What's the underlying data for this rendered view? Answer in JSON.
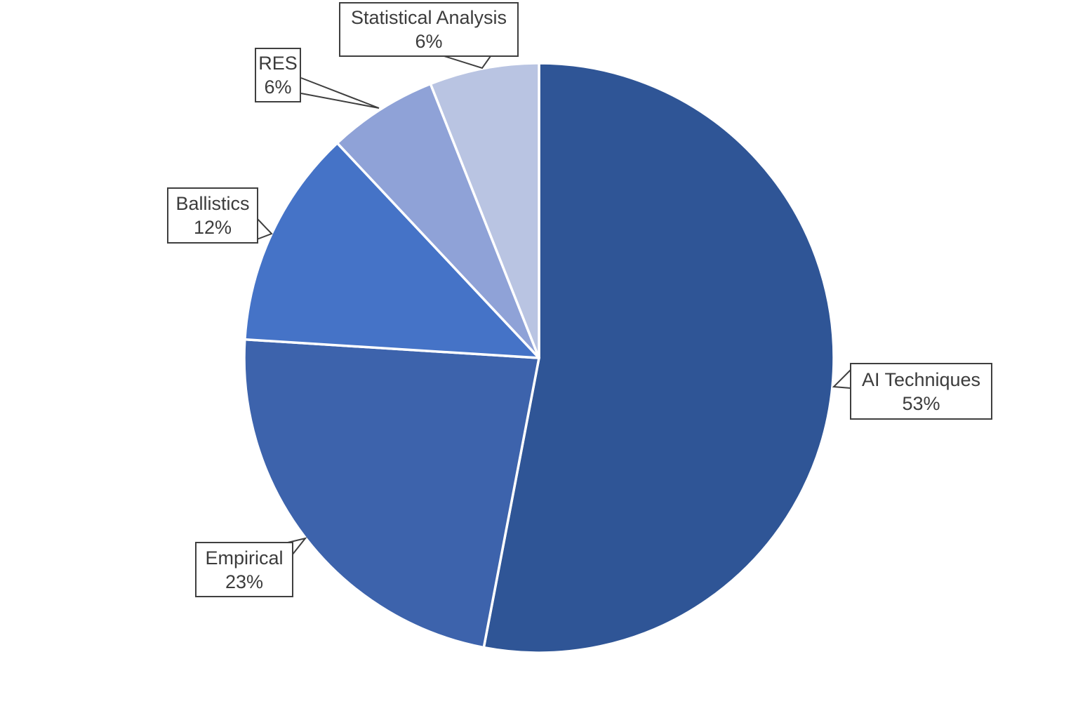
{
  "chart_data": {
    "type": "pie",
    "title": "",
    "start_angle_deg": 0,
    "direction": "clockwise",
    "separator_color": "#ffffff",
    "background_color": "#ffffff",
    "label_text_color": "#3c3c3c",
    "label_border_color": "#3f3f3f",
    "slices": [
      {
        "label": "AI Techniques",
        "value": 53,
        "pct_label": "53%",
        "color": "#2f5596"
      },
      {
        "label": "Empirical",
        "value": 23,
        "pct_label": "23%",
        "color": "#3d63ac"
      },
      {
        "label": "Ballistics",
        "value": 12,
        "pct_label": "12%",
        "color": "#4573c7"
      },
      {
        "label": "RES",
        "value": 6,
        "pct_label": "6%",
        "color": "#8fa2d7"
      },
      {
        "label": "Statistical Analysis",
        "value": 6,
        "pct_label": "6%",
        "color": "#b9c4e2"
      }
    ]
  }
}
